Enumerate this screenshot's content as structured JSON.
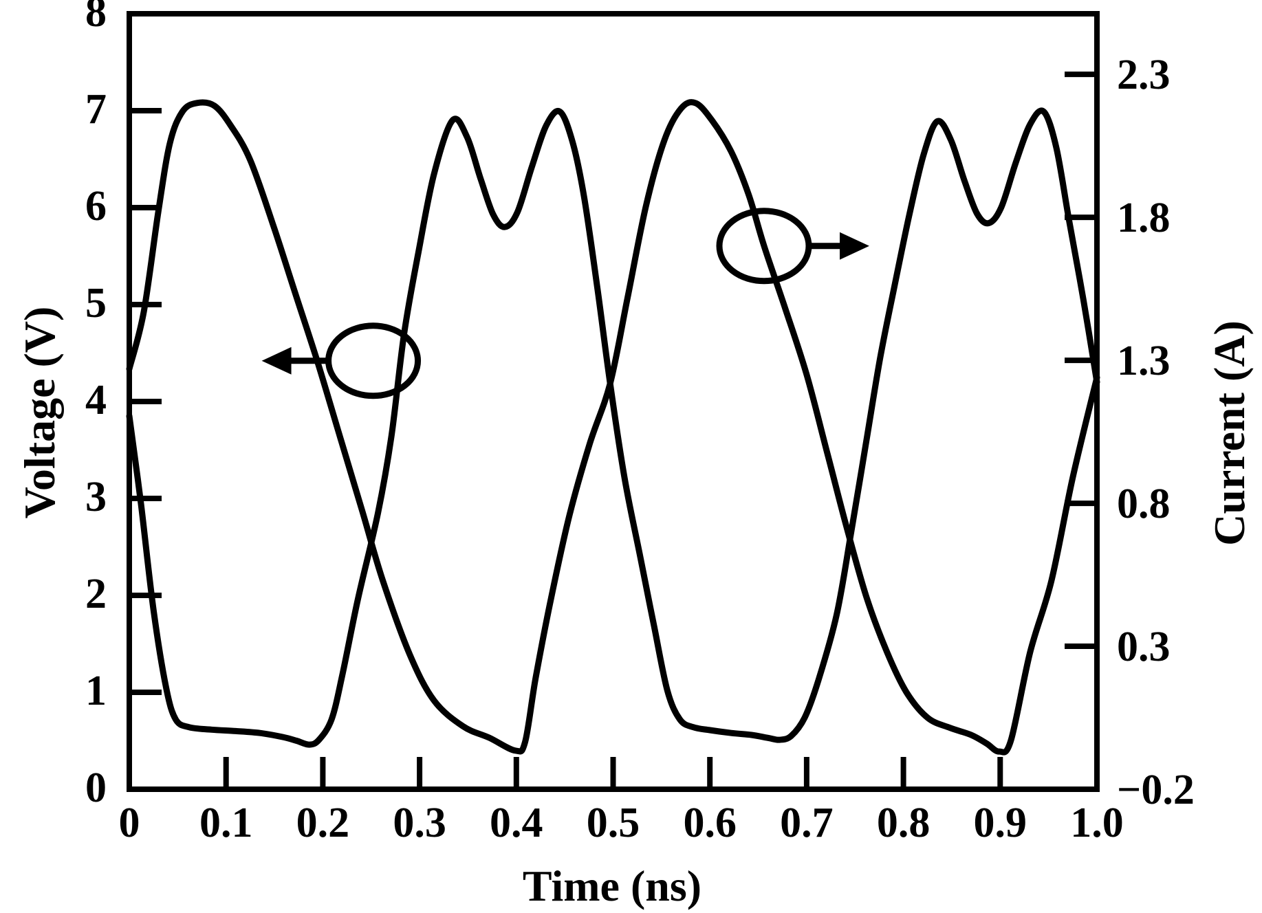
{
  "chart_data": {
    "type": "line",
    "title": "",
    "xlabel": "Time (ns)",
    "ylabel_left": "Voltage (V)",
    "ylabel_right": "Current (A)",
    "x_range": [
      0,
      1.0
    ],
    "y_left_range": [
      0,
      8
    ],
    "y_right_range": [
      -0.2,
      2.512
    ],
    "grid": false,
    "legend": "none",
    "curve_color": "#000000",
    "background_color": "#ffffff",
    "x_ticks": [
      {
        "v": 0.0,
        "label": "0",
        "mark": false
      },
      {
        "v": 0.1,
        "label": "0.1",
        "mark": true
      },
      {
        "v": 0.2,
        "label": "0.2",
        "mark": true
      },
      {
        "v": 0.3,
        "label": "0.3",
        "mark": true
      },
      {
        "v": 0.4,
        "label": "0.4",
        "mark": true
      },
      {
        "v": 0.5,
        "label": "0.5",
        "mark": true
      },
      {
        "v": 0.6,
        "label": "0.6",
        "mark": true
      },
      {
        "v": 0.7,
        "label": "0.7",
        "mark": true
      },
      {
        "v": 0.8,
        "label": "0.8",
        "mark": true
      },
      {
        "v": 0.9,
        "label": "0.9",
        "mark": true
      },
      {
        "v": 1.0,
        "label": "1.0",
        "mark": false
      }
    ],
    "y_left_ticks": [
      {
        "v": 8,
        "label": "8",
        "mark": false
      },
      {
        "v": 7,
        "label": "7",
        "mark": true
      },
      {
        "v": 6,
        "label": "6",
        "mark": true
      },
      {
        "v": 5,
        "label": "5",
        "mark": true
      },
      {
        "v": 4,
        "label": "4",
        "mark": true
      },
      {
        "v": 3,
        "label": "3",
        "mark": true
      },
      {
        "v": 2,
        "label": "2",
        "mark": true
      },
      {
        "v": 1,
        "label": "1",
        "mark": true
      },
      {
        "v": 0,
        "label": "0",
        "mark": false
      }
    ],
    "y_right_ticks": [
      {
        "v": 2.3,
        "label": "2.3",
        "mark": true
      },
      {
        "v": 1.8,
        "label": "1.8",
        "mark": true
      },
      {
        "v": 1.3,
        "label": "1.3",
        "mark": true
      },
      {
        "v": 0.8,
        "label": "0.8",
        "mark": true
      },
      {
        "v": 0.3,
        "label": "0.3",
        "mark": true
      },
      {
        "v": -0.2,
        "label": "−0.2",
        "mark": false
      }
    ],
    "series": [
      {
        "name": "voltage",
        "axis": "left",
        "points": [
          [
            0.0,
            3.85
          ],
          [
            0.012,
            2.95
          ],
          [
            0.025,
            1.85
          ],
          [
            0.038,
            1.05
          ],
          [
            0.048,
            0.72
          ],
          [
            0.062,
            0.64
          ],
          [
            0.085,
            0.615
          ],
          [
            0.11,
            0.6
          ],
          [
            0.135,
            0.58
          ],
          [
            0.158,
            0.54
          ],
          [
            0.173,
            0.5
          ],
          [
            0.186,
            0.46
          ],
          [
            0.196,
            0.51
          ],
          [
            0.209,
            0.72
          ],
          [
            0.22,
            1.17
          ],
          [
            0.236,
            1.95
          ],
          [
            0.257,
            2.85
          ],
          [
            0.271,
            3.65
          ],
          [
            0.284,
            4.7
          ],
          [
            0.299,
            5.55
          ],
          [
            0.315,
            6.35
          ],
          [
            0.334,
            6.9
          ],
          [
            0.349,
            6.73
          ],
          [
            0.363,
            6.3
          ],
          [
            0.376,
            5.93
          ],
          [
            0.388,
            5.8
          ],
          [
            0.401,
            5.95
          ],
          [
            0.416,
            6.42
          ],
          [
            0.431,
            6.85
          ],
          [
            0.445,
            6.99
          ],
          [
            0.458,
            6.68
          ],
          [
            0.47,
            6.11
          ],
          [
            0.484,
            5.15
          ],
          [
            0.497,
            4.18
          ],
          [
            0.512,
            3.2
          ],
          [
            0.528,
            2.4
          ],
          [
            0.542,
            1.7
          ],
          [
            0.556,
            1.02
          ],
          [
            0.569,
            0.72
          ],
          [
            0.583,
            0.64
          ],
          [
            0.6,
            0.61
          ],
          [
            0.622,
            0.58
          ],
          [
            0.643,
            0.56
          ],
          [
            0.66,
            0.53
          ],
          [
            0.672,
            0.51
          ],
          [
            0.684,
            0.55
          ],
          [
            0.698,
            0.74
          ],
          [
            0.712,
            1.12
          ],
          [
            0.731,
            1.8
          ],
          [
            0.746,
            2.65
          ],
          [
            0.761,
            3.55
          ],
          [
            0.776,
            4.45
          ],
          [
            0.791,
            5.2
          ],
          [
            0.806,
            5.92
          ],
          [
            0.821,
            6.55
          ],
          [
            0.835,
            6.89
          ],
          [
            0.849,
            6.7
          ],
          [
            0.863,
            6.28
          ],
          [
            0.876,
            5.94
          ],
          [
            0.888,
            5.84
          ],
          [
            0.901,
            6.0
          ],
          [
            0.916,
            6.46
          ],
          [
            0.931,
            6.86
          ],
          [
            0.945,
            6.99
          ],
          [
            0.958,
            6.62
          ],
          [
            0.971,
            5.88
          ],
          [
            0.986,
            5.05
          ],
          [
            1.0,
            4.2
          ]
        ]
      },
      {
        "name": "current",
        "axis": "right",
        "points": [
          [
            0.0,
            1.27
          ],
          [
            0.015,
            1.47
          ],
          [
            0.03,
            1.82
          ],
          [
            0.042,
            2.06
          ],
          [
            0.055,
            2.17
          ],
          [
            0.07,
            2.2
          ],
          [
            0.088,
            2.19
          ],
          [
            0.105,
            2.12
          ],
          [
            0.125,
            2.0
          ],
          [
            0.149,
            1.77
          ],
          [
            0.171,
            1.54
          ],
          [
            0.194,
            1.3
          ],
          [
            0.218,
            1.03
          ],
          [
            0.241,
            0.77
          ],
          [
            0.262,
            0.53
          ],
          [
            0.29,
            0.27
          ],
          [
            0.315,
            0.11
          ],
          [
            0.345,
            0.02
          ],
          [
            0.372,
            -0.02
          ],
          [
            0.399,
            -0.065
          ],
          [
            0.409,
            -0.035
          ],
          [
            0.42,
            0.19
          ],
          [
            0.436,
            0.47
          ],
          [
            0.455,
            0.76
          ],
          [
            0.476,
            1.01
          ],
          [
            0.497,
            1.22
          ],
          [
            0.515,
            1.52
          ],
          [
            0.534,
            1.84
          ],
          [
            0.553,
            2.07
          ],
          [
            0.57,
            2.18
          ],
          [
            0.585,
            2.2
          ],
          [
            0.602,
            2.14
          ],
          [
            0.622,
            2.03
          ],
          [
            0.64,
            1.88
          ],
          [
            0.656,
            1.7
          ],
          [
            0.678,
            1.48
          ],
          [
            0.7,
            1.25
          ],
          [
            0.721,
            0.98
          ],
          [
            0.741,
            0.72
          ],
          [
            0.762,
            0.47
          ],
          [
            0.783,
            0.28
          ],
          [
            0.803,
            0.14
          ],
          [
            0.825,
            0.05
          ],
          [
            0.848,
            0.015
          ],
          [
            0.87,
            -0.01
          ],
          [
            0.886,
            -0.04
          ],
          [
            0.899,
            -0.068
          ],
          [
            0.911,
            -0.03
          ],
          [
            0.931,
            0.28
          ],
          [
            0.953,
            0.53
          ],
          [
            0.975,
            0.89
          ],
          [
            1.0,
            1.24
          ]
        ]
      }
    ],
    "annotations": [
      {
        "name": "voltage-curve-marker",
        "shape": "ellipse",
        "t": 0.252,
        "value": 4.42,
        "axis": "left",
        "arrow_direction": "left"
      },
      {
        "name": "current-curve-marker",
        "shape": "ellipse",
        "t": 0.656,
        "value": 1.7,
        "axis": "right",
        "arrow_direction": "right"
      }
    ]
  }
}
